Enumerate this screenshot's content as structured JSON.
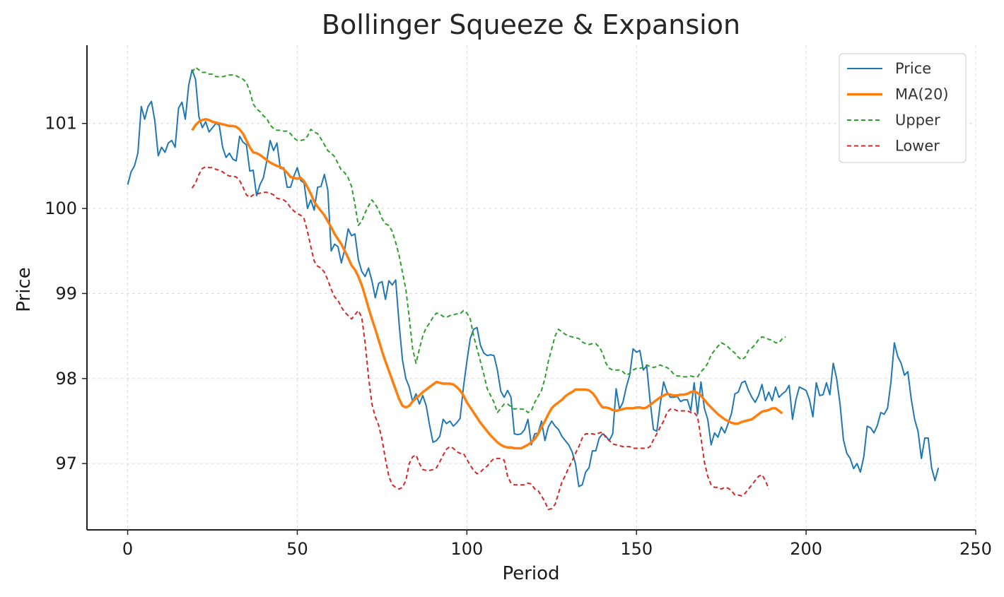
{
  "chart_data": {
    "type": "line",
    "title": "Bollinger Squeeze & Expansion",
    "xlabel": "Period",
    "ylabel": "Price",
    "xlim": [
      -12,
      250
    ],
    "ylim": [
      96.22,
      101.92
    ],
    "x_ticks": [
      0,
      50,
      100,
      150,
      200,
      250
    ],
    "y_ticks": [
      97,
      98,
      99,
      100,
      101
    ],
    "grid": true,
    "legend_position": "top-right",
    "series": [
      {
        "name": "Price",
        "color": "#1f77b4",
        "style": "solid",
        "x_start": 0,
        "values": [
          100.28,
          100.43,
          100.5,
          100.65,
          101.2,
          101.05,
          101.2,
          101.26,
          101.03,
          100.62,
          100.72,
          100.66,
          100.77,
          100.8,
          100.72,
          101.18,
          101.25,
          101.05,
          101.45,
          101.63,
          101.52,
          101.08,
          100.95,
          101.02,
          100.9,
          100.95,
          101.0,
          100.98,
          100.72,
          100.6,
          100.65,
          100.58,
          100.56,
          100.85,
          100.78,
          100.75,
          100.44,
          100.45,
          100.15,
          100.28,
          100.36,
          100.56,
          100.8,
          100.68,
          100.77,
          100.47,
          100.48,
          100.25,
          100.25,
          100.38,
          100.48,
          100.33,
          100.3,
          100.0,
          100.1,
          99.98,
          100.25,
          100.26,
          100.4,
          100.22,
          99.5,
          99.58,
          99.55,
          99.36,
          99.52,
          99.76,
          99.68,
          99.7,
          99.4,
          99.26,
          99.2,
          99.3,
          99.15,
          98.95,
          99.12,
          99.14,
          98.93,
          99.15,
          99.1,
          99.16,
          98.65,
          98.22,
          98.0,
          97.9,
          97.73,
          97.82,
          97.7,
          97.8,
          97.68,
          97.45,
          97.25,
          97.27,
          97.32,
          97.52,
          97.47,
          97.5,
          97.44,
          97.48,
          97.53,
          97.9,
          98.2,
          98.47,
          98.58,
          98.6,
          98.39,
          98.3,
          98.27,
          98.28,
          98.27,
          98.1,
          97.85,
          97.78,
          97.86,
          97.78,
          97.35,
          97.34,
          97.35,
          97.4,
          97.52,
          97.22,
          97.35,
          97.36,
          97.5,
          97.27,
          97.43,
          97.5,
          97.44,
          97.4,
          97.32,
          97.27,
          97.22,
          97.14,
          97.0,
          96.73,
          96.75,
          96.9,
          96.95,
          97.15,
          97.15,
          97.3,
          97.35,
          97.32,
          97.27,
          97.35,
          97.88,
          97.64,
          97.72,
          97.9,
          98.04,
          98.35,
          98.31,
          98.33,
          98.1,
          98.15,
          97.74,
          97.4,
          97.38,
          97.7,
          97.96,
          97.84,
          97.78,
          97.78,
          97.79,
          97.73,
          97.75,
          97.75,
          97.62,
          97.95,
          97.58,
          97.96,
          97.65,
          97.52,
          97.22,
          97.36,
          97.31,
          97.43,
          97.36,
          97.47,
          97.59,
          97.82,
          97.84,
          97.95,
          97.97,
          97.86,
          97.78,
          97.72,
          97.8,
          97.93,
          97.74,
          97.84,
          97.74,
          97.9,
          97.78,
          97.82,
          97.85,
          97.92,
          97.52,
          97.75,
          97.9,
          97.88,
          97.86,
          97.75,
          97.55,
          97.95,
          97.8,
          97.81,
          97.95,
          97.81,
          98.18,
          98.0,
          97.7,
          97.28,
          97.12,
          97.06,
          96.94,
          97.0,
          96.9,
          97.08,
          97.44,
          97.42,
          97.36,
          97.45,
          97.6,
          97.58,
          97.65,
          97.96,
          98.42,
          98.26,
          98.18,
          98.04,
          98.08,
          97.76,
          97.52,
          97.38,
          97.06,
          97.3,
          97.3,
          96.95,
          96.8,
          96.95
        ]
      },
      {
        "name": "MA(20)",
        "color": "#ff7f0e",
        "style": "solid",
        "x_start": 19,
        "values": [
          100.92,
          100.98,
          101.02,
          101.04,
          101.05,
          101.04,
          101.02,
          101.01,
          101.0,
          100.99,
          100.98,
          100.97,
          100.97,
          100.96,
          100.93,
          100.88,
          100.8,
          100.72,
          100.66,
          100.65,
          100.63,
          100.6,
          100.57,
          100.54,
          100.52,
          100.5,
          100.49,
          100.46,
          100.42,
          100.37,
          100.36,
          100.35,
          100.36,
          100.32,
          100.25,
          100.17,
          100.08,
          100.02,
          99.97,
          99.92,
          99.85,
          99.78,
          99.7,
          99.64,
          99.58,
          99.5,
          99.42,
          99.33,
          99.28,
          99.2,
          99.1,
          98.97,
          98.83,
          98.7,
          98.58,
          98.45,
          98.32,
          98.2,
          98.09,
          97.98,
          97.87,
          97.76,
          97.68,
          97.66,
          97.68,
          97.73,
          97.77,
          97.8,
          97.84,
          97.87,
          97.9,
          97.93,
          97.96,
          97.95,
          97.94,
          97.94,
          97.94,
          97.93,
          97.9,
          97.86,
          97.8,
          97.72,
          97.66,
          97.6,
          97.54,
          97.48,
          97.43,
          97.38,
          97.33,
          97.29,
          97.25,
          97.22,
          97.2,
          97.19,
          97.19,
          97.18,
          97.18,
          97.18,
          97.2,
          97.22,
          97.25,
          97.29,
          97.35,
          97.43,
          97.5,
          97.58,
          97.65,
          97.69,
          97.72,
          97.75,
          97.79,
          97.82,
          97.84,
          97.87,
          97.87,
          97.87,
          97.87,
          97.86,
          97.83,
          97.78,
          97.71,
          97.66,
          97.66,
          97.65,
          97.63,
          97.62,
          97.63,
          97.64,
          97.65,
          97.65,
          97.65,
          97.66,
          97.66,
          97.65,
          97.66,
          97.69,
          97.72,
          97.75,
          97.78,
          97.8,
          97.82,
          97.81,
          97.8,
          97.8,
          97.81,
          97.81,
          97.82,
          97.84,
          97.85,
          97.83,
          97.8,
          97.75,
          97.7,
          97.66,
          97.62,
          97.58,
          97.55,
          97.52,
          97.5,
          97.48,
          97.47,
          97.47,
          97.49,
          97.5,
          97.51,
          97.52,
          97.55,
          97.58,
          97.61,
          97.62,
          97.63,
          97.65,
          97.65,
          97.62,
          97.59
        ]
      },
      {
        "name": "Upper",
        "color": "#2ca02c",
        "style": "dashed",
        "x_start": 19,
        "values": [
          101.6,
          101.66,
          101.63,
          101.6,
          101.6,
          101.58,
          101.58,
          101.55,
          101.55,
          101.55,
          101.56,
          101.57,
          101.57,
          101.56,
          101.54,
          101.52,
          101.48,
          101.38,
          101.23,
          101.17,
          101.14,
          101.09,
          101.06,
          100.98,
          100.94,
          100.92,
          100.92,
          100.91,
          100.91,
          100.88,
          100.83,
          100.8,
          100.8,
          100.81,
          100.85,
          100.93,
          100.9,
          100.88,
          100.82,
          100.75,
          100.68,
          100.65,
          100.61,
          100.53,
          100.45,
          100.42,
          100.36,
          100.26,
          100.05,
          99.8,
          99.85,
          99.95,
          100.03,
          100.1,
          100.05,
          99.98,
          99.88,
          99.82,
          99.8,
          99.73,
          99.6,
          99.45,
          99.25,
          99.05,
          98.72,
          98.35,
          98.18,
          98.35,
          98.5,
          98.6,
          98.65,
          98.72,
          98.77,
          98.76,
          98.73,
          98.72,
          98.74,
          98.75,
          98.76,
          98.76,
          98.8,
          98.77,
          98.7,
          98.5,
          98.35,
          98.2,
          98.05,
          97.88,
          97.8,
          97.72,
          97.6,
          97.65,
          97.7,
          97.7,
          97.67,
          97.64,
          97.65,
          97.64,
          97.64,
          97.6,
          97.62,
          97.72,
          97.79,
          97.86,
          98.0,
          98.2,
          98.35,
          98.5,
          98.58,
          98.55,
          98.52,
          98.5,
          98.49,
          98.48,
          98.47,
          98.43,
          98.41,
          98.4,
          98.41,
          98.41,
          98.37,
          98.3,
          98.18,
          98.12,
          98.1,
          98.1,
          98.1,
          98.08,
          98.04,
          98.06,
          98.1,
          98.12,
          98.12,
          98.13,
          98.16,
          98.14,
          98.13,
          98.14,
          98.16,
          98.14,
          98.13,
          98.1,
          98.05,
          98.03,
          98.03,
          98.02,
          98.02,
          98.03,
          98.02,
          98.02,
          98.08,
          98.12,
          98.18,
          98.28,
          98.33,
          98.38,
          98.42,
          98.4,
          98.37,
          98.33,
          98.3,
          98.25,
          98.22,
          98.25,
          98.33,
          98.36,
          98.4,
          98.46,
          98.49,
          98.48,
          98.46,
          98.45,
          98.42,
          98.42,
          98.47,
          98.49
        ]
      },
      {
        "name": "Lower",
        "color": "#d62728",
        "style": "dashed",
        "x_start": 19,
        "values": [
          100.24,
          100.3,
          100.4,
          100.47,
          100.49,
          100.48,
          100.48,
          100.46,
          100.45,
          100.43,
          100.4,
          100.38,
          100.38,
          100.37,
          100.33,
          100.25,
          100.16,
          100.13,
          100.16,
          100.17,
          100.18,
          100.19,
          100.19,
          100.18,
          100.16,
          100.12,
          100.11,
          100.1,
          100.07,
          100.01,
          99.97,
          99.94,
          99.92,
          99.88,
          99.73,
          99.55,
          99.38,
          99.32,
          99.3,
          99.25,
          99.16,
          99.05,
          98.96,
          98.92,
          98.84,
          98.78,
          98.74,
          98.7,
          98.75,
          98.8,
          98.72,
          98.42,
          98.02,
          97.7,
          97.55,
          97.45,
          97.28,
          97.05,
          96.85,
          96.75,
          96.72,
          96.7,
          96.72,
          96.8,
          97.0,
          97.08,
          97.1,
          97.0,
          96.93,
          96.92,
          96.92,
          96.93,
          96.95,
          97.02,
          97.1,
          97.17,
          97.2,
          97.18,
          97.14,
          97.12,
          97.12,
          97.05,
          96.98,
          96.92,
          96.88,
          96.9,
          96.94,
          96.97,
          97.02,
          97.06,
          97.06,
          97.06,
          97.04,
          96.85,
          96.77,
          96.75,
          96.75,
          96.75,
          96.75,
          96.77,
          96.76,
          96.7,
          96.68,
          96.62,
          96.55,
          96.46,
          96.47,
          96.52,
          96.65,
          96.78,
          96.86,
          96.95,
          97.03,
          97.12,
          97.2,
          97.3,
          97.35,
          97.35,
          97.35,
          97.34,
          97.36,
          97.37,
          97.3,
          97.27,
          97.23,
          97.22,
          97.21,
          97.2,
          97.2,
          97.2,
          97.18,
          97.18,
          97.18,
          97.18,
          97.18,
          97.2,
          97.28,
          97.35,
          97.43,
          97.5,
          97.6,
          97.64,
          97.64,
          97.62,
          97.62,
          97.62,
          97.62,
          97.6,
          97.6,
          97.55,
          97.3,
          97.02,
          96.85,
          96.75,
          96.72,
          96.72,
          96.7,
          96.72,
          96.71,
          96.68,
          96.63,
          96.63,
          96.62,
          96.65,
          96.7,
          96.75,
          96.8,
          96.85,
          96.87,
          96.8,
          96.7
        ]
      }
    ]
  }
}
